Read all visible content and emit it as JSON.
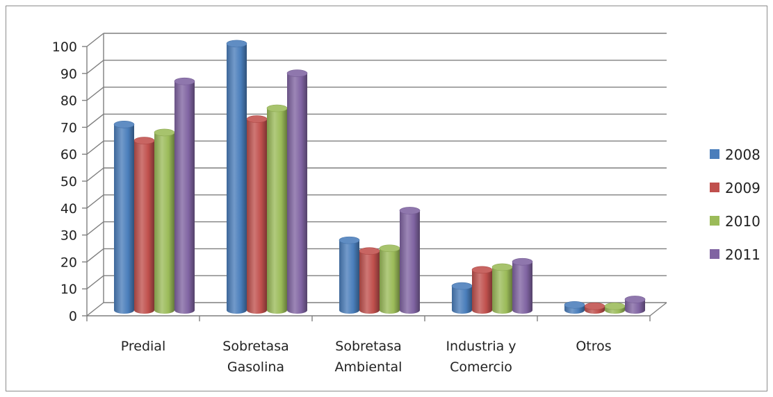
{
  "chart_data": {
    "type": "bar",
    "style": "3d-cylinder",
    "categories": [
      [
        "Predial"
      ],
      [
        "Sobretasa",
        "Gasolina"
      ],
      [
        "Sobretasa",
        "Ambiental"
      ],
      [
        "Industria y",
        "Comercio"
      ],
      [
        "Otros"
      ]
    ],
    "series": [
      {
        "name": "2008",
        "color": "#4a7ebb",
        "values": [
          69,
          99,
          26,
          9,
          2
        ]
      },
      {
        "name": "2009",
        "color": "#c0504d",
        "values": [
          63,
          71,
          22,
          15,
          1.5
        ]
      },
      {
        "name": "2010",
        "color": "#9bbb59",
        "values": [
          66,
          75,
          23,
          16,
          1.5
        ]
      },
      {
        "name": "2011",
        "color": "#8064a2",
        "values": [
          85,
          88,
          37,
          18,
          4
        ]
      }
    ],
    "title": "",
    "xlabel": "",
    "ylabel": "",
    "ylim": [
      0,
      100
    ],
    "yticks": [
      "0",
      "10",
      "20",
      "30",
      "40",
      "50",
      "60",
      "70",
      "80",
      "90",
      "100"
    ],
    "grid": true,
    "legend_position": "right"
  }
}
